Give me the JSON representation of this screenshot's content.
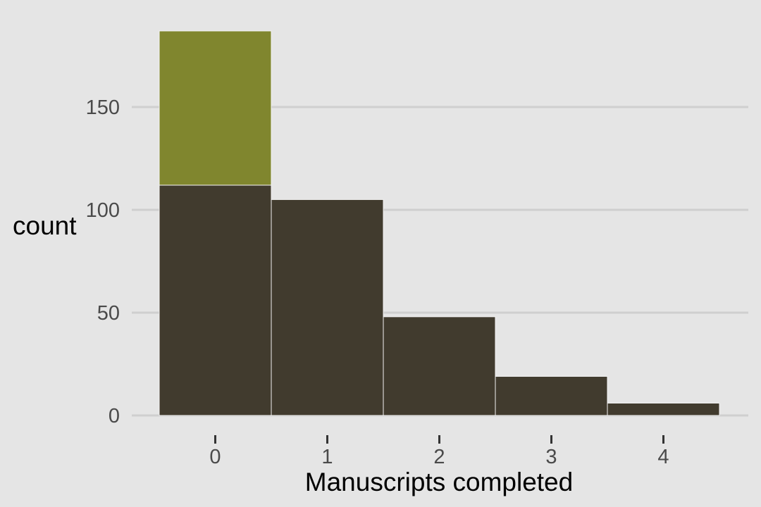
{
  "chart_data": {
    "type": "bar",
    "categories": [
      "0",
      "1",
      "2",
      "3",
      "4"
    ],
    "series": [
      {
        "values": [
          112,
          105,
          48,
          19,
          6
        ]
      },
      {
        "values": [
          75,
          0,
          0,
          0,
          0
        ]
      }
    ],
    "stacked": true,
    "xlabel": "Manuscripts completed",
    "ylabel": "count",
    "yticks": [
      "0",
      "50",
      "100",
      "150"
    ],
    "ylim": [
      0,
      188
    ],
    "grid": "horizontal",
    "legend": "none"
  },
  "colors": {
    "background": "#e5e5e5",
    "gridline": "#cfcfcf",
    "bar_base": "#413b2e",
    "bar_top": "#80862e",
    "bar_edge": "#f2f2f2"
  }
}
